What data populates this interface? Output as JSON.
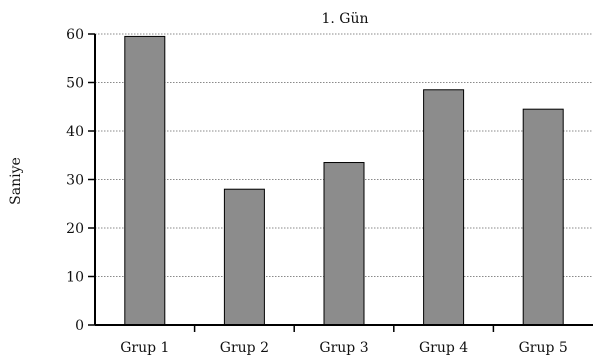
{
  "chart_data": {
    "type": "bar",
    "title": "1. Gün",
    "xlabel": "",
    "ylabel": "Saniye",
    "categories": [
      "Grup 1",
      "Grup 2",
      "Grup 3",
      "Grup 4",
      "Grup 5"
    ],
    "values": [
      59.5,
      28,
      33.5,
      48.5,
      44.5
    ],
    "ylim": [
      0,
      60
    ],
    "yticks": [
      0,
      10,
      20,
      30,
      40,
      50,
      60
    ],
    "grid": true,
    "legend": "none",
    "colors": {
      "bar": "#8c8c8c",
      "grid": "#8a8a8a",
      "axis": "#000000"
    }
  }
}
